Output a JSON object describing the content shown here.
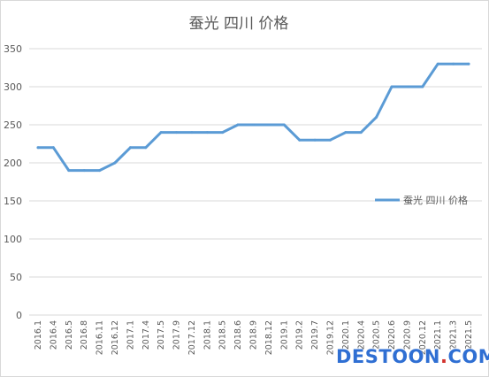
{
  "chart_data": {
    "type": "line",
    "title": "蚕光 四川 价格",
    "xlabel": "",
    "ylabel": "",
    "ylim": [
      0,
      350
    ],
    "yticks": [
      0,
      50,
      100,
      150,
      200,
      250,
      300,
      350
    ],
    "grid": true,
    "legend_position": "right",
    "colors": {
      "line": "#5b9bd5",
      "grid": "#d9d9d9",
      "text": "#595959"
    },
    "categories": [
      "2016.1",
      "2016.4",
      "2016.5",
      "2016.8",
      "2016.11",
      "2016.12",
      "2017.1",
      "2017.4",
      "2017.5",
      "2017.9",
      "2017.12",
      "2018.1",
      "2018.5",
      "2018.6",
      "2018.9",
      "2018.12",
      "2019.1",
      "2019.2",
      "2019.7",
      "2019.12",
      "2020.1",
      "2020.4",
      "2020.5",
      "2020.6",
      "2020.9",
      "2020.12",
      "2021.1",
      "2021.3",
      "2021.5"
    ],
    "series": [
      {
        "name": "蚕光 四川 价格",
        "values": [
          220,
          220,
          190,
          190,
          190,
          200,
          220,
          220,
          240,
          240,
          240,
          240,
          240,
          250,
          250,
          250,
          250,
          230,
          230,
          230,
          240,
          240,
          260,
          300,
          300,
          300,
          330,
          330,
          330
        ]
      }
    ]
  },
  "watermark": {
    "text": "DESTOON",
    "dot": ".",
    "tld": "COM"
  }
}
